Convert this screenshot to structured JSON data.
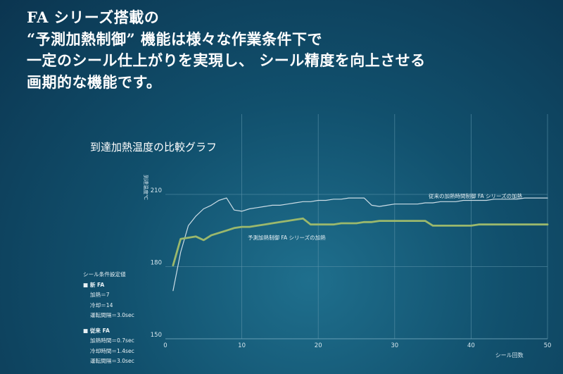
{
  "headline": {
    "lines": [
      "FA シリーズ搭載の",
      "“予測加熱制御” 機能は様々な作業条件下で",
      "一定のシール仕上がりを実現し、 シール精度を向上させる",
      "画期的な機能です。"
    ]
  },
  "chart_data": {
    "type": "line",
    "title": "到達加熱温度の比較グラフ",
    "xlabel": "シール回数",
    "ylabel": "到達温度℃",
    "xlim": [
      0,
      50
    ],
    "ylim": [
      150,
      215
    ],
    "xticks": [
      0,
      10,
      20,
      30,
      40,
      50
    ],
    "yticks": [
      150,
      180,
      210
    ],
    "grid": "vertical at x ticks, horizontal at 180 and 210",
    "series": [
      {
        "name": "従来の加熱時間制御 FA シリーズの加熱",
        "color": "#ccdde6",
        "x": [
          1,
          2,
          3,
          4,
          5,
          6,
          7,
          8,
          9,
          10,
          11,
          12,
          13,
          14,
          15,
          16,
          17,
          18,
          19,
          20,
          21,
          22,
          23,
          24,
          25,
          26,
          27,
          28,
          29,
          30,
          31,
          32,
          33,
          34,
          35,
          36,
          37,
          38,
          39,
          40,
          41,
          42,
          43,
          44,
          45,
          46,
          47,
          48,
          49,
          50
        ],
        "y": [
          170,
          186,
          197,
          201,
          204,
          205.5,
          207.5,
          208.5,
          203.5,
          203,
          204,
          204.5,
          205,
          205.5,
          205.5,
          206,
          206.5,
          207,
          207,
          207.5,
          207.5,
          208,
          208,
          208.5,
          208.5,
          208.5,
          205.5,
          205,
          205.5,
          206,
          206,
          206,
          206,
          206.5,
          206.5,
          207,
          207,
          207,
          207.5,
          207.5,
          207.5,
          207.5,
          208,
          208,
          208,
          208,
          208.5,
          208.5,
          208.5,
          208.5
        ]
      },
      {
        "name": "予測加熱制御 FA シリーズの加熱",
        "color": "#9bb86c",
        "x": [
          1,
          2,
          3,
          4,
          5,
          6,
          7,
          8,
          9,
          10,
          11,
          12,
          13,
          14,
          15,
          16,
          17,
          18,
          19,
          20,
          21,
          22,
          23,
          24,
          25,
          26,
          27,
          28,
          29,
          30,
          31,
          32,
          33,
          34,
          35,
          36,
          37,
          38,
          39,
          40,
          41,
          42,
          43,
          44,
          45,
          46,
          47,
          48,
          49,
          50
        ],
        "y": [
          180.5,
          191.5,
          192,
          192.5,
          191,
          193,
          194,
          195,
          196,
          196.5,
          196.5,
          197,
          197.5,
          198,
          198.5,
          199,
          199.5,
          200,
          197.5,
          197.5,
          197.5,
          197.5,
          198,
          198,
          198,
          198.5,
          198.5,
          199,
          199,
          199,
          199,
          199,
          199,
          199,
          197,
          197,
          197,
          197,
          197,
          197,
          197.5,
          197.5,
          197.5,
          197.5,
          197.5,
          197.5,
          197.5,
          197.5,
          197.5,
          197.5
        ]
      }
    ],
    "annotations": [
      {
        "text": "従来の加熱時間制御 FA シリーズの加熱",
        "at_series": 0
      },
      {
        "text": "予測加熱制御 FA シリーズの加熱",
        "at_series": 1
      }
    ]
  },
  "conditions": {
    "title": "シール条件設定値",
    "groups": [
      {
        "label": "■ 新 FA",
        "items": [
          "加熱＝7",
          "冷却＝14",
          "運転間隔＝3.0sec"
        ]
      },
      {
        "label": "■ 従来 FA",
        "items": [
          "加熱時間＝0.7sec",
          "冷却時間＝1.4sec",
          "運転間隔＝3.0sec"
        ]
      }
    ]
  }
}
